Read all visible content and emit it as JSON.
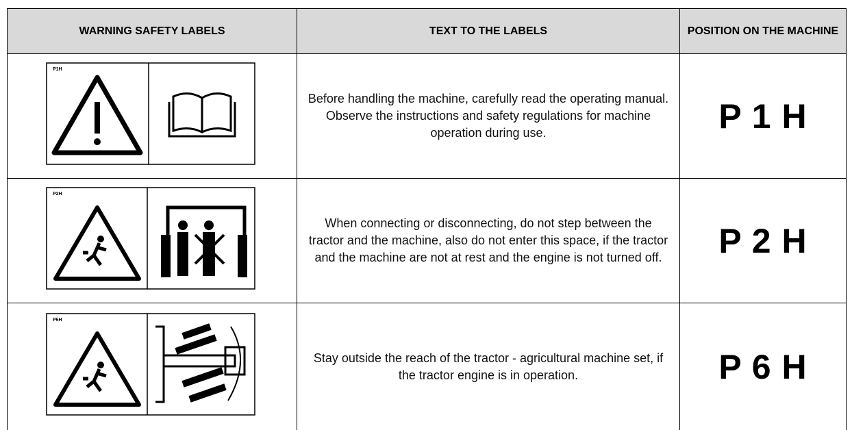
{
  "table": {
    "header": [
      "WARNING SAFETY LABELS",
      "TEXT TO THE LABELS",
      "POSITION ON THE MACHINE"
    ],
    "rows": [
      {
        "label_code": "P1H",
        "text": [
          "Before handling the machine, carefully read the operating manual.",
          "Observe the instructions and safety regulations for machine operation during use."
        ],
        "position": "P 1 H"
      },
      {
        "label_code": "P2H",
        "text": [
          "When connecting or disconnecting, do not step between the tractor and the machine, also do not enter this space, if the tractor and the machine are not at rest and the engine is not turned off."
        ],
        "position": "P 2 H"
      },
      {
        "label_code": "P6H",
        "text": [
          "Stay outside the reach of the tractor - agricultural machine set, if the tractor engine is in operation."
        ],
        "position": "P 6 H"
      }
    ]
  }
}
